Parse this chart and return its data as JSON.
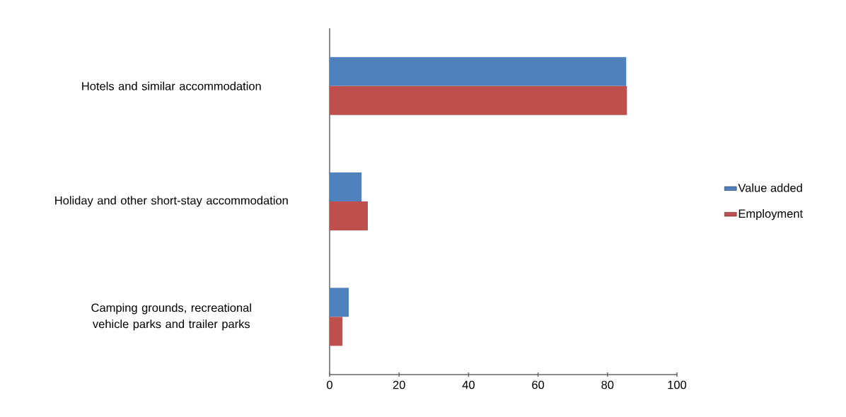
{
  "chart_data": {
    "type": "bar",
    "orientation": "horizontal",
    "categories": [
      "Hotels and similar accommodation",
      "Holiday and other short-stay accommodation",
      "Camping grounds, recreational vehicle parks and trailer parks"
    ],
    "series": [
      {
        "name": "Value added",
        "color": "#4f81bd",
        "values": [
          85.4,
          9.2,
          5.5
        ]
      },
      {
        "name": "Employment",
        "color": "#c0504d",
        "values": [
          85.6,
          11.0,
          3.7
        ]
      }
    ],
    "xlim": [
      0,
      100
    ],
    "xticks": [
      0,
      20,
      40,
      60,
      80,
      100
    ],
    "grid": false,
    "legend": "right"
  }
}
